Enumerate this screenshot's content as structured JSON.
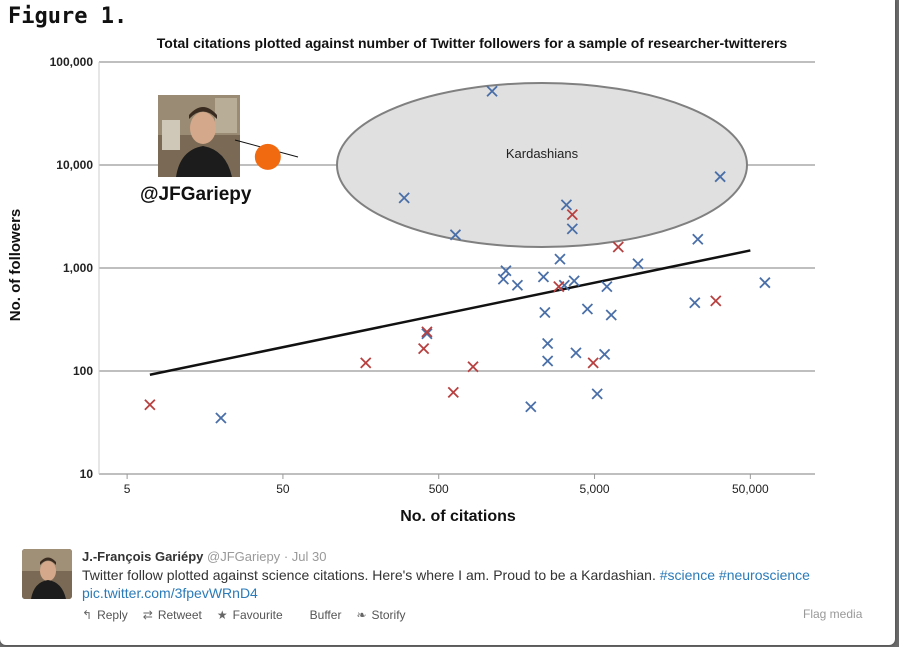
{
  "figure_label": "Figure 1.",
  "chart_data": {
    "type": "scatter",
    "title": "Total citations plotted against number of Twitter followers for a sample of researcher-twitterers",
    "xlabel": "No. of citations",
    "ylabel": "No. of followers",
    "xscale": "log",
    "yscale": "log",
    "xlim": [
      3.3,
      130000
    ],
    "ylim": [
      10,
      100000
    ],
    "x_ticks": [
      5,
      50,
      500,
      5000,
      50000
    ],
    "x_tick_labels": [
      "5",
      "50",
      "500",
      "5,000",
      "50,000"
    ],
    "y_ticks": [
      10,
      100,
      1000,
      10000,
      100000
    ],
    "y_tick_labels": [
      "10",
      "100",
      "1,000",
      "10,000",
      "100,000"
    ],
    "grid": "horizontal",
    "colors": {
      "blue": "#4a6fa8",
      "red": "#b84040",
      "highlight": "#f26a10",
      "ellipse_fill": "#e0e0e0",
      "ellipse_stroke": "#808080"
    },
    "series": [
      {
        "color": "blue",
        "points": [
          [
            20,
            35
          ],
          [
            300,
            4800
          ],
          [
            420,
            230
          ],
          [
            640,
            2100
          ],
          [
            1100,
            52000
          ],
          [
            1350,
            940
          ],
          [
            1300,
            780
          ],
          [
            1600,
            680
          ],
          [
            1950,
            45
          ],
          [
            2350,
            820
          ],
          [
            2400,
            370
          ],
          [
            2500,
            185
          ],
          [
            2500,
            125
          ],
          [
            3000,
            1220
          ],
          [
            3200,
            680
          ],
          [
            3300,
            4100
          ],
          [
            3600,
            2400
          ],
          [
            3700,
            750
          ],
          [
            3800,
            150
          ],
          [
            4500,
            400
          ],
          [
            5200,
            60
          ],
          [
            5800,
            145
          ],
          [
            6000,
            660
          ],
          [
            6400,
            350
          ],
          [
            9500,
            1100
          ],
          [
            22000,
            460
          ],
          [
            23000,
            1900
          ],
          [
            32000,
            7700
          ],
          [
            62000,
            720
          ]
        ]
      },
      {
        "color": "red",
        "points": [
          [
            7,
            47
          ],
          [
            170,
            120
          ],
          [
            400,
            165
          ],
          [
            420,
            240
          ],
          [
            620,
            62
          ],
          [
            830,
            110
          ],
          [
            2950,
            660
          ],
          [
            3600,
            3300
          ],
          [
            4900,
            120
          ],
          [
            7100,
            1600
          ],
          [
            30000,
            480
          ]
        ]
      }
    ],
    "trendline": [
      [
        7,
        92
      ],
      [
        50000,
        1480
      ]
    ],
    "annotations": {
      "ellipse_label": "Kardashians",
      "highlight_point": [
        40,
        12000
      ],
      "handle_label": "@JFGariepy"
    }
  },
  "tweet": {
    "author_name": "J.-François Gariépy",
    "author_handle": "@JFGariepy",
    "separator": "·",
    "date": "Jul 30",
    "text": "Twitter follow plotted against science citations. Here's where I am. Proud to be a Kardashian.",
    "hashtags": [
      "#science",
      "#neuroscience"
    ],
    "link": "pic.twitter.com/3fpevWRnD4"
  },
  "actions": {
    "reply": "Reply",
    "retweet": "Retweet",
    "favourite": "Favourite",
    "buffer": "Buffer",
    "storify": "Storify",
    "flag_media": "Flag media"
  },
  "icons": {
    "reply": "reply-arrow-icon",
    "retweet": "retweet-icon",
    "favourite": "star-icon",
    "buffer": "buffer-icon",
    "storify": "storify-icon"
  }
}
